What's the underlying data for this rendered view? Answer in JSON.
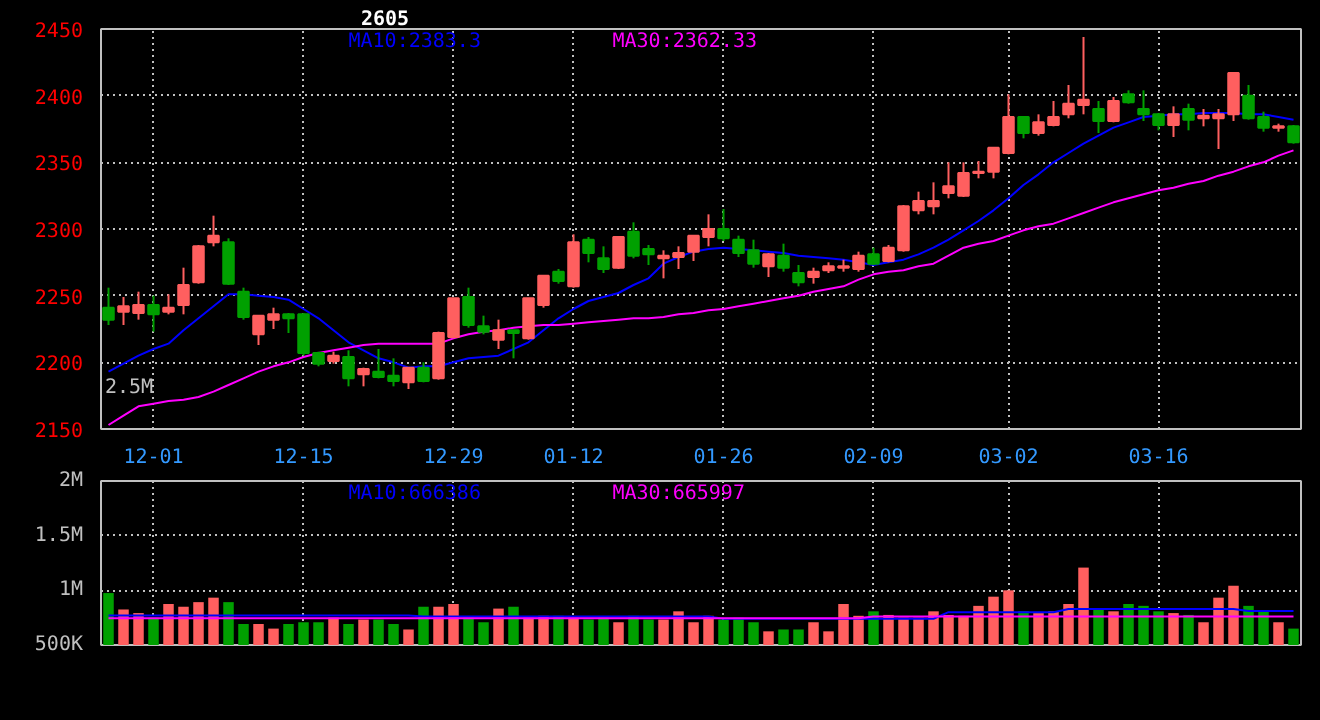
{
  "chart_data": [
    {
      "type": "candlestick",
      "title": "2605",
      "legend": "top",
      "grid": true,
      "annotations": [
        "2.5M"
      ],
      "categories": [
        null,
        null,
        null,
        "12-01",
        null,
        null,
        null,
        null,
        null,
        null,
        null,
        null,
        null,
        "12-15",
        null,
        null,
        null,
        null,
        null,
        null,
        null,
        null,
        null,
        "12-29",
        null,
        null,
        null,
        null,
        null,
        null,
        null,
        "01-12",
        null,
        null,
        null,
        null,
        null,
        null,
        null,
        null,
        null,
        "01-26",
        null,
        null,
        null,
        null,
        null,
        null,
        null,
        null,
        null,
        "02-09",
        null,
        null,
        null,
        null,
        null,
        null,
        null,
        null,
        "03-02",
        null,
        null,
        null,
        null,
        null,
        null,
        null,
        null,
        null,
        "03-16",
        null,
        null,
        null,
        null,
        null,
        null,
        null,
        null,
        null
      ],
      "ylim": [
        2150,
        2450
      ],
      "yticks": [
        2150,
        2200,
        2250,
        2300,
        2350,
        2400,
        2450
      ],
      "ohlc": [
        [
          2241,
          2256,
          2228,
          2232
        ],
        [
          2238,
          2249,
          2228,
          2242
        ],
        [
          2237,
          2253,
          2232,
          2243
        ],
        [
          2243,
          2250,
          2223,
          2236
        ],
        [
          2238,
          2251,
          2236,
          2241
        ],
        [
          2243,
          2271,
          2236,
          2258
        ],
        [
          2260,
          2288,
          2259,
          2287
        ],
        [
          2290,
          2310,
          2287,
          2295
        ],
        [
          2290,
          2293,
          2258,
          2259
        ],
        [
          2253,
          2256,
          2232,
          2234
        ],
        [
          2221,
          2235,
          2213,
          2235
        ],
        [
          2232,
          2241,
          2225,
          2236
        ],
        [
          2236,
          2237,
          2222,
          2233
        ],
        [
          2236,
          2237,
          2205,
          2207
        ],
        [
          2207,
          2208,
          2197,
          2199
        ],
        [
          2201,
          2208,
          2199,
          2205
        ],
        [
          2204,
          2209,
          2182,
          2188
        ],
        [
          2191,
          2196,
          2182,
          2195
        ],
        [
          2193,
          2210,
          2188,
          2189
        ],
        [
          2190,
          2203,
          2182,
          2186
        ],
        [
          2185,
          2196,
          2180,
          2196
        ],
        [
          2196,
          2200,
          2185,
          2186
        ],
        [
          2188,
          2223,
          2187,
          2222
        ],
        [
          2219,
          2248,
          2218,
          2248
        ],
        [
          2249,
          2256,
          2226,
          2228
        ],
        [
          2227,
          2235,
          2221,
          2223
        ],
        [
          2217,
          2232,
          2210,
          2224
        ],
        [
          2224,
          2224,
          2203,
          2222
        ],
        [
          2218,
          2248,
          2217,
          2248
        ],
        [
          2243,
          2265,
          2241,
          2265
        ],
        [
          2268,
          2270,
          2259,
          2261
        ],
        [
          2257,
          2296,
          2256,
          2290
        ],
        [
          2292,
          2294,
          2275,
          2282
        ],
        [
          2278,
          2287,
          2267,
          2270
        ],
        [
          2271,
          2294,
          2270,
          2294
        ],
        [
          2298,
          2305,
          2278,
          2280
        ],
        [
          2285,
          2288,
          2273,
          2281
        ],
        [
          2278,
          2284,
          2263,
          2280
        ],
        [
          2279,
          2287,
          2270,
          2282
        ],
        [
          2283,
          2295,
          2276,
          2295
        ],
        [
          2294,
          2311,
          2287,
          2300
        ],
        [
          2300,
          2315,
          2291,
          2293
        ],
        [
          2292,
          2295,
          2279,
          2282
        ],
        [
          2284,
          2292,
          2271,
          2274
        ],
        [
          2272,
          2282,
          2264,
          2281
        ],
        [
          2280,
          2289,
          2268,
          2271
        ],
        [
          2267,
          2273,
          2257,
          2260
        ],
        [
          2264,
          2271,
          2259,
          2268
        ],
        [
          2269,
          2275,
          2267,
          2272
        ],
        [
          2271,
          2277,
          2268,
          2272
        ],
        [
          2270,
          2283,
          2268,
          2280
        ],
        [
          2281,
          2286,
          2273,
          2274
        ],
        [
          2276,
          2288,
          2275,
          2286
        ],
        [
          2284,
          2318,
          2283,
          2317
        ],
        [
          2314,
          2328,
          2311,
          2321
        ],
        [
          2317,
          2335,
          2311,
          2321
        ],
        [
          2327,
          2350,
          2323,
          2332
        ],
        [
          2325,
          2350,
          2324,
          2342
        ],
        [
          2342,
          2351,
          2338,
          2343
        ],
        [
          2343,
          2361,
          2338,
          2361
        ],
        [
          2357,
          2401,
          2356,
          2384
        ],
        [
          2384,
          2384,
          2368,
          2372
        ],
        [
          2372,
          2386,
          2370,
          2380
        ],
        [
          2378,
          2396,
          2377,
          2384
        ],
        [
          2386,
          2408,
          2383,
          2394
        ],
        [
          2393,
          2444,
          2386,
          2397
        ],
        [
          2390,
          2396,
          2372,
          2381
        ],
        [
          2381,
          2399,
          2380,
          2396
        ],
        [
          2401,
          2404,
          2394,
          2395
        ],
        [
          2390,
          2404,
          2381,
          2386
        ],
        [
          2386,
          2387,
          2374,
          2378
        ],
        [
          2378,
          2392,
          2369,
          2386
        ],
        [
          2390,
          2394,
          2374,
          2382
        ],
        [
          2383,
          2390,
          2377,
          2385
        ],
        [
          2383,
          2390,
          2360,
          2386
        ],
        [
          2386,
          2417,
          2381,
          2417
        ],
        [
          2400,
          2408,
          2382,
          2383
        ],
        [
          2384,
          2388,
          2373,
          2376
        ],
        [
          2376,
          2379,
          2373,
          2377
        ],
        [
          2377,
          2378,
          2364,
          2365
        ]
      ],
      "colors": [
        "#00a000",
        "#ff5f5f",
        "#ff5f5f",
        "#00a000",
        "#ff5f5f",
        "#ff5f5f",
        "#ff5f5f",
        "#ff5f5f",
        "#00a000",
        "#00a000",
        "#ff5f5f",
        "#ff5f5f",
        "#00a000",
        "#00a000",
        "#00a000",
        "#ff5f5f",
        "#00a000",
        "#ff5f5f",
        "#00a000",
        "#00a000",
        "#ff5f5f",
        "#00a000",
        "#ff5f5f",
        "#ff5f5f",
        "#00a000",
        "#00a000",
        "#ff5f5f",
        "#00a000",
        "#ff5f5f",
        "#ff5f5f",
        "#00a000",
        "#ff5f5f",
        "#00a000",
        "#00a000",
        "#ff5f5f",
        "#00a000",
        "#00a000",
        "#ff5f5f",
        "#ff5f5f",
        "#ff5f5f",
        "#ff5f5f",
        "#00a000",
        "#00a000",
        "#00a000",
        "#ff5f5f",
        "#00a000",
        "#00a000",
        "#ff5f5f",
        "#ff5f5f",
        "#ff5f5f",
        "#ff5f5f",
        "#00a000",
        "#ff5f5f",
        "#ff5f5f",
        "#ff5f5f",
        "#ff5f5f",
        "#ff5f5f",
        "#ff5f5f",
        "#ff5f5f",
        "#ff5f5f",
        "#ff5f5f",
        "#00a000",
        "#ff5f5f",
        "#ff5f5f",
        "#ff5f5f",
        "#ff5f5f",
        "#00a000",
        "#ff5f5f",
        "#00a000",
        "#00a000",
        "#00a000",
        "#ff5f5f",
        "#00a000",
        "#ff5f5f",
        "#ff5f5f",
        "#ff5f5f",
        "#00a000",
        "#00a000",
        "#ff5f5f",
        "#00a000"
      ],
      "series": [
        {
          "name": "MA10:2383.3",
          "type": "line",
          "color": "#0000ff",
          "values": [
            2193,
            2199,
            2205,
            2210,
            2214,
            2224,
            2233,
            2242,
            2251,
            2251,
            2250,
            2249,
            2247,
            2240,
            2233,
            2224,
            2215,
            2209,
            2203,
            2200,
            2196,
            2197,
            2197,
            2200,
            2203,
            2204,
            2205,
            2210,
            2215,
            2224,
            2233,
            2240,
            2246,
            2249,
            2252,
            2258,
            2263,
            2274,
            2279,
            2283,
            2285,
            2286,
            2285,
            2284,
            2283,
            2282,
            2280,
            2279,
            2278,
            2277,
            2275,
            2273,
            2275,
            2277,
            2281,
            2286,
            2292,
            2299,
            2306,
            2314,
            2323,
            2333,
            2341,
            2350,
            2357,
            2364,
            2370,
            2376,
            2380,
            2384,
            2385,
            2386,
            2386,
            2387,
            2387,
            2387,
            2386,
            2386,
            2384,
            2382
          ]
        },
        {
          "name": "MA30:2362.33",
          "type": "line",
          "color": "#ff00ff",
          "values": [
            2153,
            2160,
            2167,
            2169,
            2171,
            2172,
            2174,
            2178,
            2183,
            2188,
            2193,
            2197,
            2200,
            2204,
            2207,
            2209,
            2211,
            2213,
            2214,
            2214,
            2214,
            2214,
            2214,
            2218,
            2221,
            2223,
            2224,
            2226,
            2227,
            2228,
            2228,
            2229,
            2230,
            2231,
            2232,
            2233,
            2233,
            2234,
            2236,
            2237,
            2239,
            2240,
            2242,
            2244,
            2246,
            2248,
            2250,
            2253,
            2255,
            2257,
            2262,
            2266,
            2268,
            2269,
            2272,
            2274,
            2280,
            2286,
            2289,
            2291,
            2295,
            2299,
            2302,
            2304,
            2308,
            2312,
            2316,
            2320,
            2323,
            2326,
            2329,
            2331,
            2334,
            2336,
            2340,
            2343,
            2347,
            2350,
            2355,
            2359
          ]
        }
      ]
    },
    {
      "type": "bar",
      "legend": "top",
      "grid": true,
      "tick_labels": "y",
      "categories": [
        null,
        null,
        null,
        null,
        null,
        null,
        null,
        null,
        null,
        null,
        null,
        null,
        null,
        null,
        null,
        null,
        null,
        null,
        null,
        null,
        null,
        null,
        null,
        null,
        null,
        null,
        null,
        null,
        null,
        null,
        null,
        null,
        null,
        null,
        null,
        null,
        null,
        null,
        null,
        null,
        null,
        null,
        null,
        null,
        null,
        null,
        null,
        null,
        null,
        null,
        null,
        null,
        null,
        null,
        null,
        null,
        null,
        null,
        null,
        null,
        null,
        null,
        null,
        null,
        null,
        null,
        null,
        null,
        null,
        null,
        null,
        null,
        null,
        null,
        null,
        null,
        null,
        null,
        null,
        null
      ],
      "ylim": [
        500000,
        2000000
      ],
      "yticks": [
        {
          "value": 500000,
          "label": "500K"
        },
        {
          "value": 1000000,
          "label": "1M"
        },
        {
          "value": 1500000,
          "label": "1.5M"
        },
        {
          "value": 2000000,
          "label": "2M"
        }
      ],
      "values": [
        975000,
        825000,
        792000,
        750000,
        875000,
        850000,
        892000,
        933000,
        892000,
        692000,
        692000,
        650000,
        692000,
        708000,
        708000,
        750000,
        692000,
        733000,
        733000,
        692000,
        642000,
        850000,
        850000,
        875000,
        750000,
        708000,
        833000,
        850000,
        750000,
        767000,
        767000,
        750000,
        733000,
        750000,
        708000,
        767000,
        733000,
        733000,
        808000,
        708000,
        767000,
        733000,
        750000,
        708000,
        625000,
        642000,
        642000,
        708000,
        625000,
        875000,
        767000,
        808000,
        775000,
        750000,
        750000,
        808000,
        775000,
        767000,
        858000,
        942000,
        1000000,
        808000,
        792000,
        808000,
        875000,
        1208000,
        833000,
        808000,
        875000,
        858000,
        808000,
        792000,
        775000,
        708000,
        933000,
        1042000,
        858000,
        808000,
        708000,
        650000
      ],
      "colors": [
        "#00a000",
        "#ff5f5f",
        "#ff5f5f",
        "#00a000",
        "#ff5f5f",
        "#ff5f5f",
        "#ff5f5f",
        "#ff5f5f",
        "#00a000",
        "#00a000",
        "#ff5f5f",
        "#ff5f5f",
        "#00a000",
        "#00a000",
        "#00a000",
        "#ff5f5f",
        "#00a000",
        "#ff5f5f",
        "#00a000",
        "#00a000",
        "#ff5f5f",
        "#00a000",
        "#ff5f5f",
        "#ff5f5f",
        "#00a000",
        "#00a000",
        "#ff5f5f",
        "#00a000",
        "#ff5f5f",
        "#ff5f5f",
        "#00a000",
        "#ff5f5f",
        "#00a000",
        "#00a000",
        "#ff5f5f",
        "#00a000",
        "#00a000",
        "#ff5f5f",
        "#ff5f5f",
        "#ff5f5f",
        "#ff5f5f",
        "#00a000",
        "#00a000",
        "#00a000",
        "#ff5f5f",
        "#00a000",
        "#00a000",
        "#ff5f5f",
        "#ff5f5f",
        "#ff5f5f",
        "#ff5f5f",
        "#00a000",
        "#ff5f5f",
        "#ff5f5f",
        "#ff5f5f",
        "#ff5f5f",
        "#ff5f5f",
        "#ff5f5f",
        "#ff5f5f",
        "#ff5f5f",
        "#ff5f5f",
        "#00a000",
        "#ff5f5f",
        "#ff5f5f",
        "#ff5f5f",
        "#ff5f5f",
        "#00a000",
        "#ff5f5f",
        "#00a000",
        "#00a000",
        "#00a000",
        "#ff5f5f",
        "#00a000",
        "#ff5f5f",
        "#ff5f5f",
        "#ff5f5f",
        "#00a000",
        "#00a000",
        "#ff5f5f",
        "#00a000"
      ],
      "series": [
        {
          "name": "MA10:666386",
          "type": "line",
          "color": "#0000ff",
          "values": [
            770000,
            770000,
            770000,
            770000,
            770000,
            770000,
            770000,
            770000,
            770000,
            770000,
            770000,
            770000,
            770000,
            770000,
            770000,
            770000,
            770000,
            770000,
            770000,
            770000,
            770000,
            760000,
            760000,
            760000,
            760000,
            760000,
            760000,
            760000,
            760000,
            760000,
            760000,
            760000,
            760000,
            760000,
            760000,
            760000,
            760000,
            760000,
            760000,
            760000,
            760000,
            740000,
            740000,
            740000,
            740000,
            740000,
            740000,
            740000,
            740000,
            740000,
            740000,
            740000,
            740000,
            740000,
            740000,
            740000,
            800000,
            800000,
            800000,
            800000,
            800000,
            800000,
            800000,
            800000,
            830000,
            830000,
            830000,
            830000,
            830000,
            830000,
            830000,
            830000,
            830000,
            830000,
            830000,
            830000,
            810000,
            810000,
            810000,
            810000
          ]
        },
        {
          "name": "MA30:665997",
          "type": "line",
          "color": "#ff00ff",
          "values": [
            745000,
            745000,
            745000,
            745000,
            745000,
            745000,
            745000,
            745000,
            745000,
            745000,
            745000,
            745000,
            745000,
            745000,
            745000,
            745000,
            745000,
            745000,
            745000,
            745000,
            745000,
            745000,
            745000,
            745000,
            745000,
            745000,
            745000,
            745000,
            745000,
            745000,
            745000,
            745000,
            745000,
            745000,
            745000,
            745000,
            745000,
            745000,
            745000,
            745000,
            745000,
            745000,
            745000,
            745000,
            745000,
            745000,
            745000,
            745000,
            745000,
            745000,
            745000,
            760000,
            760000,
            760000,
            760000,
            760000,
            760000,
            760000,
            760000,
            760000,
            760000,
            760000,
            760000,
            760000,
            760000,
            760000,
            760000,
            760000,
            760000,
            760000,
            760000,
            760000,
            760000,
            760000,
            760000,
            760000,
            760000,
            760000,
            760000,
            760000
          ]
        }
      ]
    }
  ]
}
